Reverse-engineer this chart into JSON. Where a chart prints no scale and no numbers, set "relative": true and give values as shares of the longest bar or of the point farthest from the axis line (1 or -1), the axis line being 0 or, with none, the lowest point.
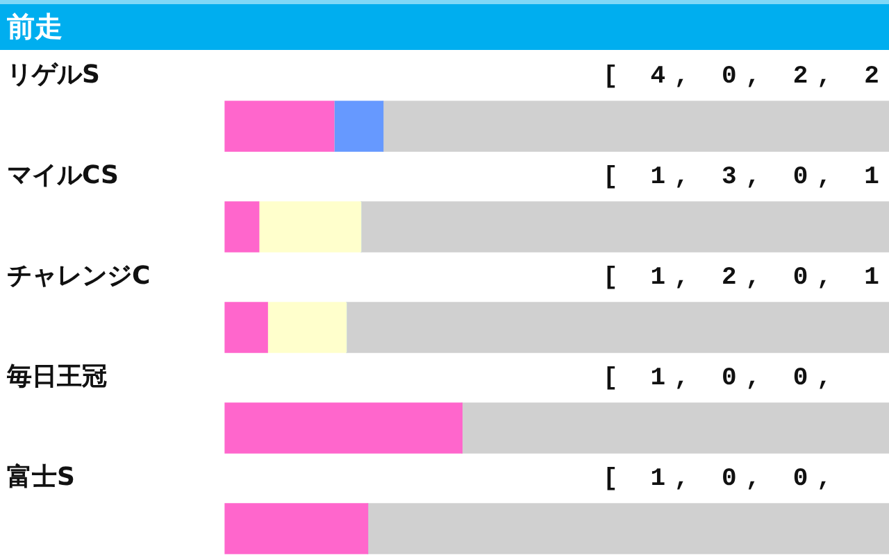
{
  "chart_data": {
    "type": "bar",
    "title": "前走",
    "orientation": "horizontal",
    "stacked": true,
    "relative": true,
    "categories": [
      "リゲルS",
      "マイルCS",
      "チャレンジC",
      "毎日王冠",
      "富士S"
    ],
    "series": [
      {
        "color": "#ff66cc",
        "values": [
          0.164,
          0.051,
          0.064,
          0.357,
          0.215
        ]
      },
      {
        "color": "#ffffcc",
        "values": [
          0,
          0.154,
          0.119,
          0,
          0
        ]
      },
      {
        "color": "#6699ff",
        "values": [
          0.074,
          0,
          0,
          0,
          0
        ]
      },
      {
        "color": "#d0d0d0",
        "values": [
          0.762,
          0.795,
          0.817,
          0.643,
          0.785
        ]
      }
    ],
    "annotations": [
      "[ 4, 0, 2, 2",
      "[ 1, 3, 0, 1",
      "[ 1, 2, 0, 1",
      "[ 1, 0, 0,",
      "[ 1, 0, 0,"
    ]
  }
}
